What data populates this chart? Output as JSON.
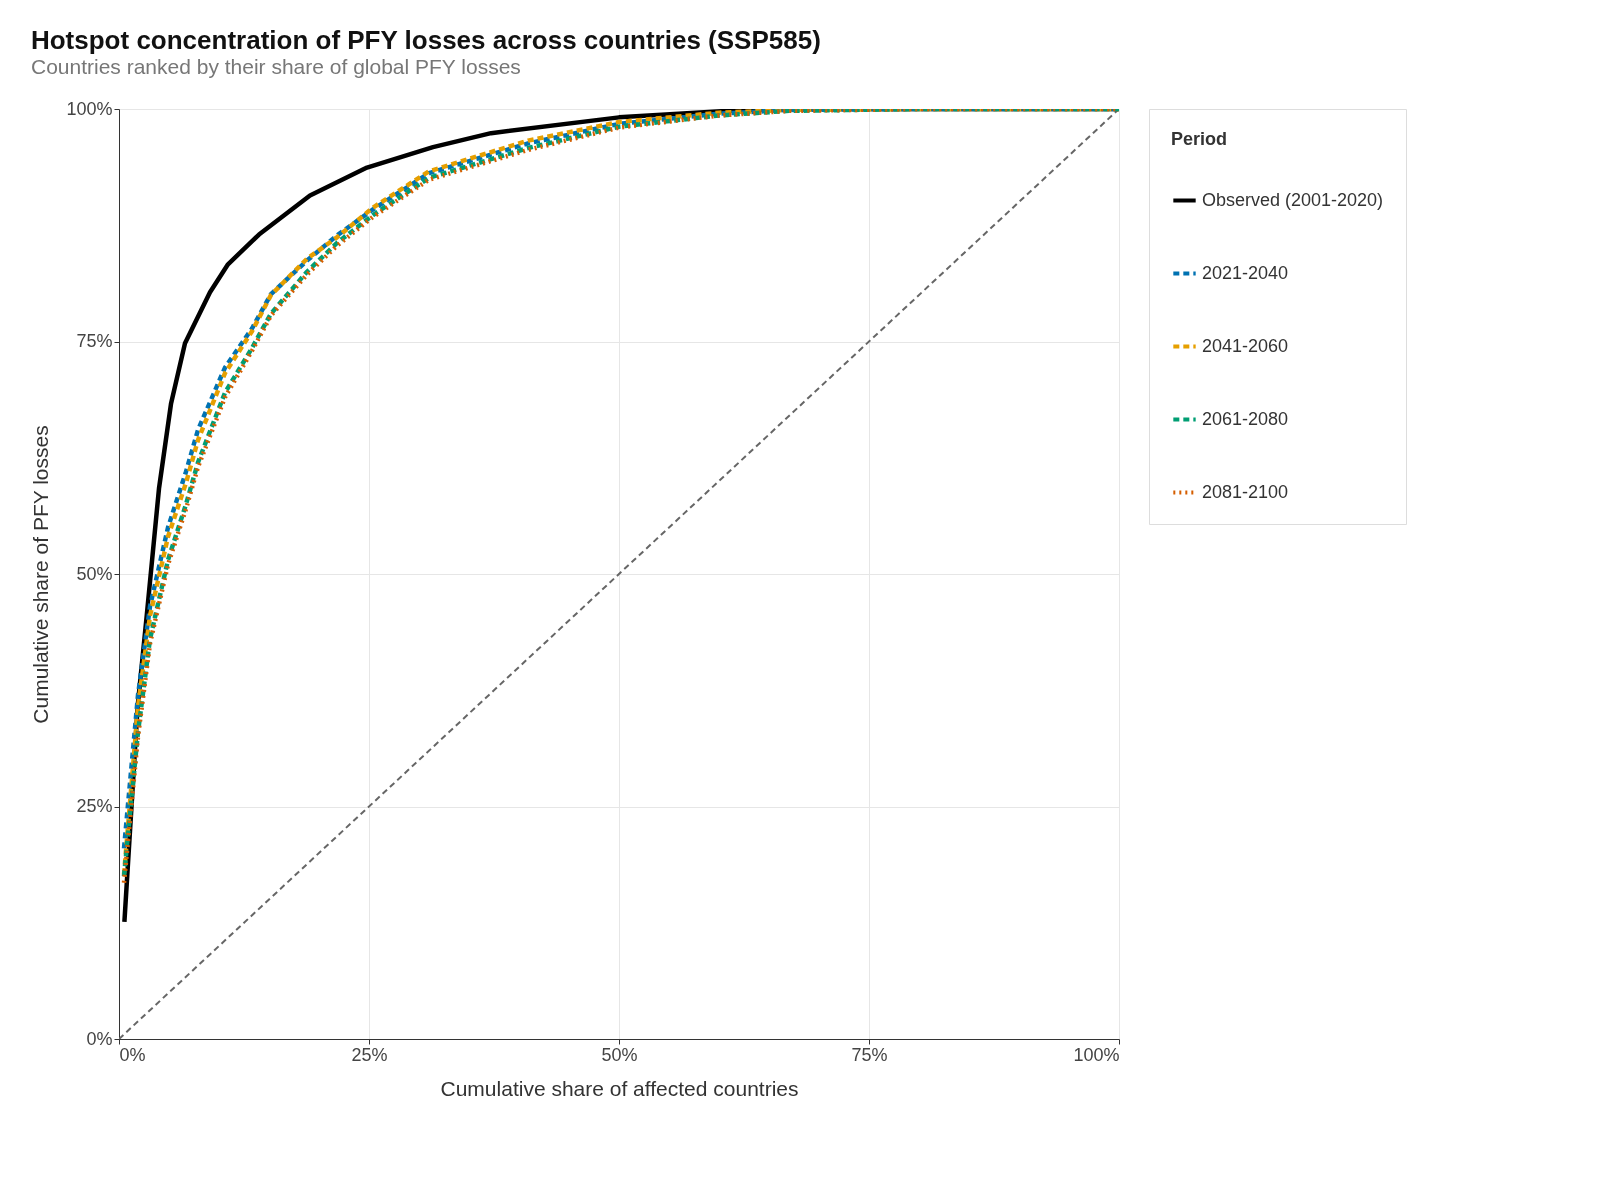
{
  "chart_data": {
    "type": "line",
    "title": "Hotspot concentration of PFY losses across countries (SSP585)",
    "subtitle": "Countries ranked by their share of global PFY losses",
    "xlabel": "Cumulative share of affected countries",
    "ylabel": "Cumulative share of PFY losses",
    "legend_title": "Period",
    "legend": "right",
    "grid": true,
    "xlim": [
      0,
      100
    ],
    "ylim": [
      0,
      100
    ],
    "xticks": [
      {
        "value": 0,
        "label": "0%"
      },
      {
        "value": 25,
        "label": "25%"
      },
      {
        "value": 50,
        "label": "50%"
      },
      {
        "value": 75,
        "label": "75%"
      },
      {
        "value": 100,
        "label": "100%"
      }
    ],
    "yticks": [
      {
        "value": 0,
        "label": "0%"
      },
      {
        "value": 25,
        "label": "25%"
      },
      {
        "value": 50,
        "label": "50%"
      },
      {
        "value": 75,
        "label": "75%"
      },
      {
        "value": 100,
        "label": "100%"
      }
    ],
    "series": [
      {
        "name": "Observed (2001-2020)",
        "color": "#000000",
        "line_style": "solid",
        "x": [
          0.54,
          1.86,
          2.77,
          4.0,
          5.2,
          6.6,
          9.1,
          10.9,
          14.0,
          19.1,
          24.8,
          31.4,
          37.2,
          50,
          62.4,
          70,
          100
        ],
        "values": [
          12.6,
          35.7,
          45.5,
          59.2,
          68.3,
          74.8,
          80.3,
          83.3,
          86.5,
          90.7,
          93.7,
          95.9,
          97.4,
          99.1,
          99.9,
          100,
          100
        ]
      },
      {
        "name": "2021-2040",
        "color": "#0072b2",
        "line_style": "dashed",
        "x": [
          0.5,
          1.9,
          3.1,
          4.9,
          6.7,
          7.9,
          10.6,
          13.3,
          15.2,
          18.8,
          21.8,
          25.4,
          31,
          40.9,
          50,
          60,
          67,
          80,
          100
        ],
        "values": [
          20.5,
          37,
          46.5,
          55,
          61,
          65.5,
          72.2,
          76.4,
          80.1,
          83.7,
          86.4,
          89.2,
          93.1,
          96.3,
          98.4,
          99.5,
          99.9,
          100,
          100
        ]
      },
      {
        "name": "2041-2060",
        "color": "#e69f00",
        "line_style": "dashed",
        "x": [
          0.5,
          1.9,
          3.1,
          4.9,
          6.7,
          7.9,
          10.6,
          13.3,
          15.2,
          18.8,
          21.8,
          25.4,
          31,
          40.9,
          50,
          60,
          67,
          80,
          100
        ],
        "values": [
          17.7,
          35.7,
          45.5,
          54,
          59.8,
          64.4,
          71.6,
          76.1,
          80,
          83.9,
          86.2,
          89.4,
          93.3,
          96.6,
          98.6,
          99.6,
          99.9,
          100,
          100
        ]
      },
      {
        "name": "2061-2080",
        "color": "#009e73",
        "line_style": "dashed",
        "x": [
          0.5,
          1.9,
          3.1,
          4.9,
          6.7,
          7.9,
          10.6,
          13.3,
          15.2,
          18.8,
          21.8,
          25.4,
          31,
          40.9,
          50,
          60,
          67,
          80,
          100
        ],
        "values": [
          17.5,
          33,
          43,
          51.5,
          57.5,
          62,
          69.5,
          74.3,
          78,
          82.5,
          85.6,
          88.6,
          92.6,
          95.8,
          98.1,
          99.3,
          99.8,
          100,
          100
        ]
      },
      {
        "name": "2081-2100",
        "color": "#d55e00",
        "line_style": "dotted",
        "x": [
          0.5,
          1.9,
          3.1,
          4.9,
          6.7,
          7.9,
          10.6,
          13.3,
          15.2,
          18.8,
          21.8,
          25.4,
          31,
          40.9,
          50,
          60,
          67,
          80,
          100
        ],
        "values": [
          16.8,
          32.5,
          42.5,
          51,
          57,
          61.5,
          69,
          74,
          77.8,
          82.2,
          85.3,
          88.4,
          92.4,
          95.6,
          98,
          99.3,
          99.8,
          100,
          100
        ]
      },
      {
        "color": "#666666",
        "line_style": "dashed",
        "x": [
          0,
          100
        ],
        "values": [
          0,
          100
        ]
      }
    ]
  }
}
